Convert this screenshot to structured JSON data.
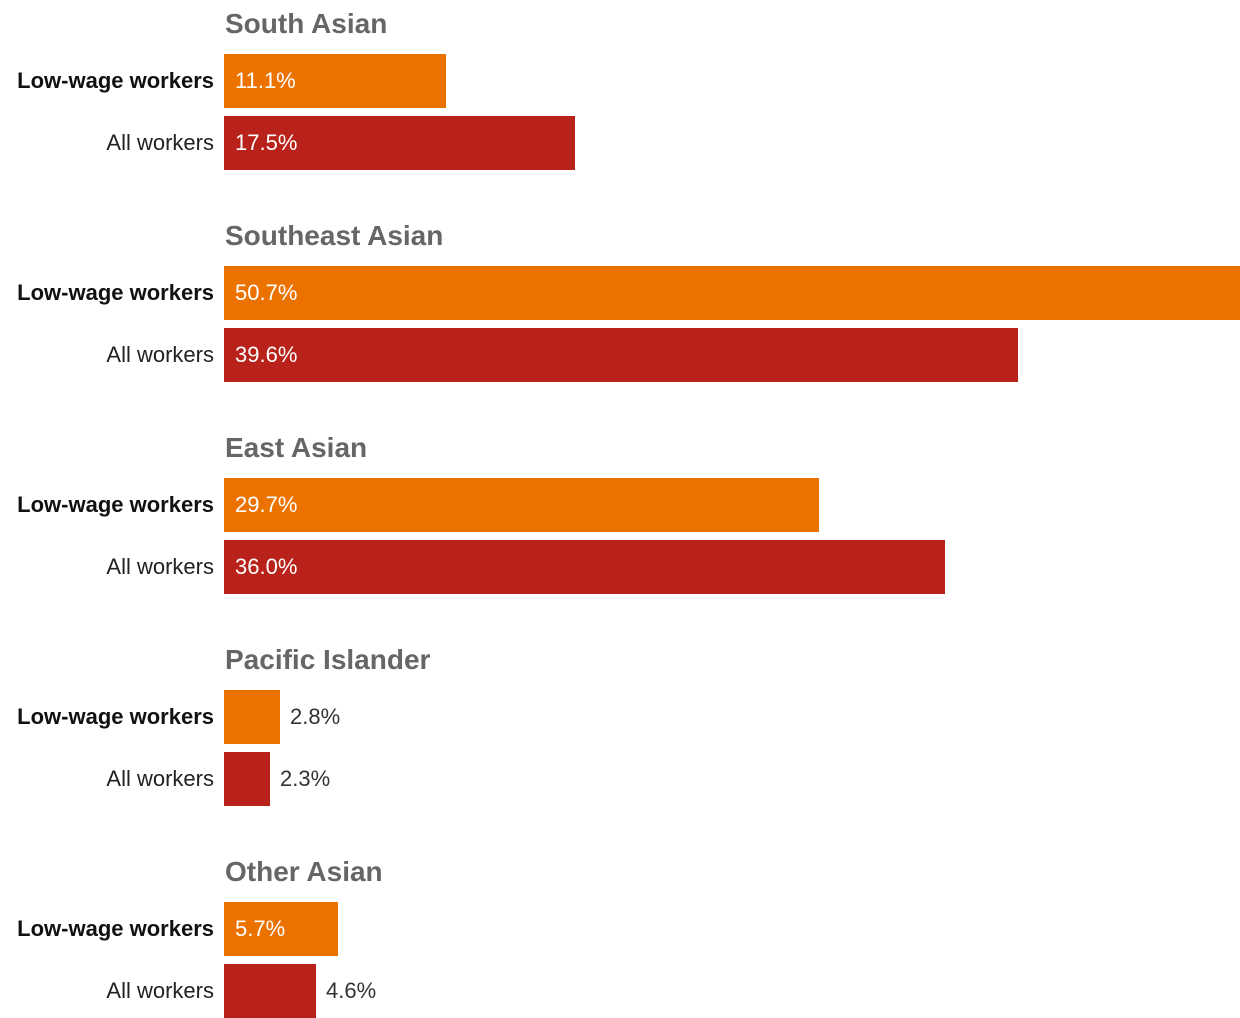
{
  "chart_data": {
    "type": "bar",
    "orientation": "horizontal",
    "series": [
      {
        "name": "Low-wage workers",
        "color": "#ec7200"
      },
      {
        "name": "All workers",
        "color": "#b8221a"
      }
    ],
    "groups": [
      {
        "title": "South Asian",
        "values": [
          11.1,
          17.5
        ],
        "labels": [
          "11.1%",
          "17.5%"
        ]
      },
      {
        "title": "Southeast Asian",
        "values": [
          50.7,
          39.6
        ],
        "labels": [
          "50.7%",
          "39.6%"
        ]
      },
      {
        "title": "East Asian",
        "values": [
          29.7,
          36.0
        ],
        "labels": [
          "29.7%",
          "36.0%"
        ]
      },
      {
        "title": "Pacific Islander",
        "values": [
          2.8,
          2.3
        ],
        "labels": [
          "2.8%",
          "2.3%"
        ]
      },
      {
        "title": "Other Asian",
        "values": [
          5.7,
          4.6
        ],
        "labels": [
          "5.7%",
          "4.6%"
        ]
      }
    ],
    "xlim": [
      0,
      50.7
    ],
    "unit": "%",
    "grid": false,
    "legend": "none"
  }
}
